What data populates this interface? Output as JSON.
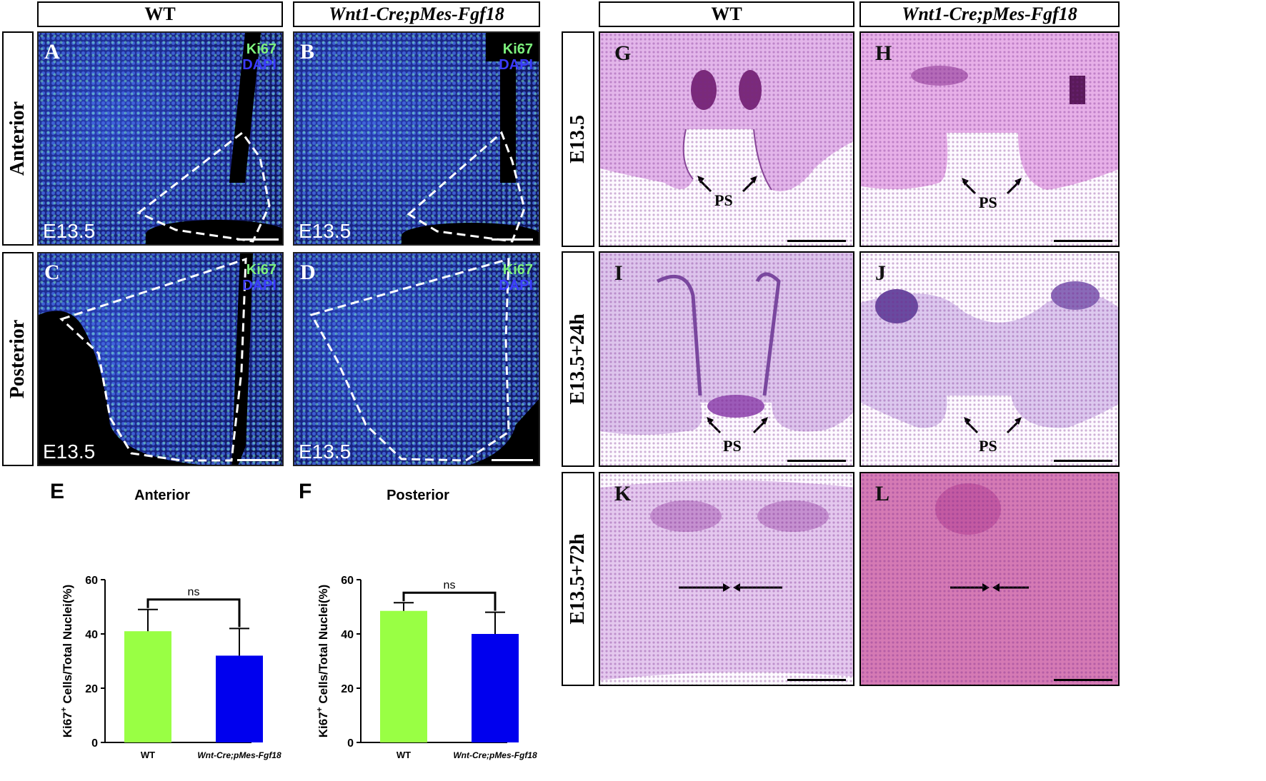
{
  "left_panel": {
    "col_headers": [
      "WT",
      "Wnt1-Cre;pMes-Fgf18"
    ],
    "row_labels": [
      "Anterior",
      "Posterior"
    ],
    "panels": [
      {
        "letter": "A",
        "stain_green": "Ki67",
        "stain_blue": "DAPI",
        "age": "E13.5"
      },
      {
        "letter": "B",
        "stain_green": "Ki67",
        "stain_blue": "DAPI",
        "age": "E13.5"
      },
      {
        "letter": "C",
        "stain_green": "Ki67",
        "stain_blue": "DAPI",
        "age": "E13.5"
      },
      {
        "letter": "D",
        "stain_green": "Ki67",
        "stain_blue": "DAPI",
        "age": "E13.5"
      }
    ]
  },
  "right_panel": {
    "col_headers": [
      "WT",
      "Wnt1-Cre;pMes-Fgf18"
    ],
    "row_labels": [
      "E13.5",
      "E13.5+24h",
      "E13.5+72h"
    ],
    "panels": [
      {
        "letter": "G",
        "annotation": "PS"
      },
      {
        "letter": "H",
        "annotation": "PS"
      },
      {
        "letter": "I",
        "annotation": "PS"
      },
      {
        "letter": "J",
        "annotation": "PS"
      },
      {
        "letter": "K"
      },
      {
        "letter": "L"
      }
    ]
  },
  "chart_data": [
    {
      "panel": "E",
      "type": "bar",
      "title": "Anterior",
      "ylabel": "Ki67+ Cells/Total Nuclei(%)",
      "categories": [
        "WT",
        "Wnt-Cre;pMes-Fgf18"
      ],
      "values": [
        41,
        32
      ],
      "errors": [
        8,
        10
      ],
      "colors": [
        "#99ff44",
        "#0000ee"
      ],
      "ylim": [
        0,
        60
      ],
      "yticks": [
        0,
        20,
        40,
        60
      ],
      "significance": "ns"
    },
    {
      "panel": "F",
      "type": "bar",
      "title": "Posterior",
      "ylabel": "Ki67+ Cells/Total Nuclei(%)",
      "categories": [
        "WT",
        "Wnt-Cre;pMes-Fgf18"
      ],
      "values": [
        48.5,
        40
      ],
      "errors": [
        3,
        8
      ],
      "colors": [
        "#99ff44",
        "#0000ee"
      ],
      "ylim": [
        0,
        60
      ],
      "yticks": [
        0,
        20,
        40,
        60
      ],
      "significance": "ns"
    }
  ]
}
